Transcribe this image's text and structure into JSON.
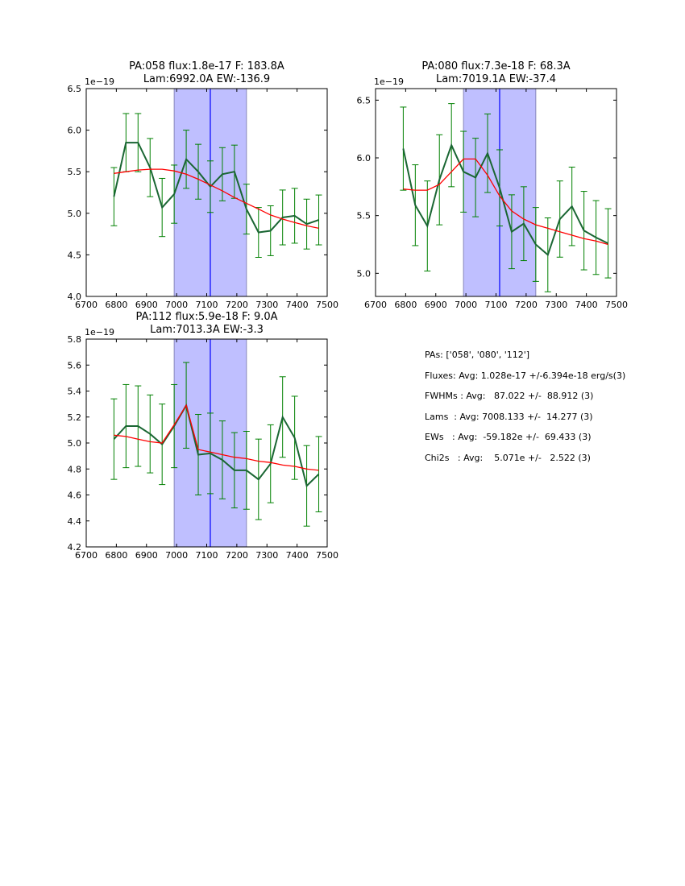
{
  "chart_data": [
    {
      "type": "line",
      "title_lines": [
        "PA:058 flux:1.8e-17 F: 183.8A",
        "Lam:6992.0A EW:-136.9"
      ],
      "offset_label": "1e−19",
      "xlim": [
        6700,
        7500
      ],
      "ylim": [
        4.0,
        6.5
      ],
      "xticks": [
        6700,
        6800,
        6900,
        7000,
        7100,
        7200,
        7300,
        7400,
        7500
      ],
      "yticks": [
        "4.0",
        "4.5",
        "5.0",
        "5.5",
        "6.0",
        "6.5"
      ],
      "shade_range": [
        6992,
        7232
      ],
      "center_line": 7112,
      "x": [
        6792,
        6832,
        6872,
        6912,
        6952,
        6992,
        7032,
        7072,
        7112,
        7152,
        7192,
        7232,
        7272,
        7312,
        7352,
        7392,
        7432,
        7472
      ],
      "series": [
        {
          "name": "data",
          "color": "#006633",
          "values": [
            5.2,
            5.85,
            5.85,
            5.55,
            5.07,
            5.23,
            5.65,
            5.5,
            5.32,
            5.47,
            5.5,
            5.05,
            4.77,
            4.79,
            4.95,
            4.97,
            4.87,
            4.92
          ],
          "errors": [
            0.35,
            0.35,
            0.35,
            0.35,
            0.35,
            0.35,
            0.35,
            0.33,
            0.31,
            0.32,
            0.32,
            0.3,
            0.3,
            0.3,
            0.33,
            0.33,
            0.3,
            0.3
          ]
        },
        {
          "name": "fit",
          "color": "#ff0000",
          "values": [
            5.48,
            5.5,
            5.52,
            5.53,
            5.53,
            5.51,
            5.47,
            5.41,
            5.34,
            5.27,
            5.19,
            5.12,
            5.05,
            4.98,
            4.93,
            4.89,
            4.85,
            4.82
          ]
        }
      ]
    },
    {
      "type": "line",
      "title_lines": [
        "PA:080 flux:7.3e-18 F: 68.3A",
        "Lam:7019.1A EW:-37.4"
      ],
      "offset_label": "1e−19",
      "xlim": [
        6700,
        7500
      ],
      "ylim": [
        4.8,
        6.6
      ],
      "xticks": [
        6700,
        6800,
        6900,
        7000,
        7100,
        7200,
        7300,
        7400,
        7500
      ],
      "yticks": [
        "5.0",
        "5.5",
        "6.0",
        "6.5"
      ],
      "shade_range": [
        6992,
        7232
      ],
      "center_line": 7112,
      "x": [
        6792,
        6832,
        6872,
        6912,
        6952,
        6992,
        7032,
        7072,
        7112,
        7152,
        7192,
        7232,
        7272,
        7312,
        7352,
        7392,
        7432,
        7472
      ],
      "series": [
        {
          "name": "data",
          "color": "#006633",
          "values": [
            6.08,
            5.59,
            5.41,
            5.81,
            6.11,
            5.88,
            5.83,
            6.04,
            5.74,
            5.36,
            5.43,
            5.25,
            5.16,
            5.47,
            5.58,
            5.37,
            5.31,
            5.26
          ],
          "errors": [
            0.36,
            0.35,
            0.39,
            0.39,
            0.36,
            0.35,
            0.34,
            0.34,
            0.33,
            0.32,
            0.32,
            0.32,
            0.32,
            0.33,
            0.34,
            0.34,
            0.32,
            0.3
          ]
        },
        {
          "name": "fit",
          "color": "#ff0000",
          "values": [
            5.73,
            5.72,
            5.72,
            5.77,
            5.88,
            5.99,
            5.99,
            5.85,
            5.67,
            5.54,
            5.47,
            5.42,
            5.39,
            5.36,
            5.33,
            5.3,
            5.28,
            5.25
          ]
        }
      ]
    },
    {
      "type": "line",
      "title_lines": [
        "PA:112 flux:5.9e-18 F: 9.0A",
        "Lam:7013.3A EW:-3.3"
      ],
      "offset_label": "1e−19",
      "xlim": [
        6700,
        7500
      ],
      "ylim": [
        4.2,
        5.8
      ],
      "xticks": [
        6700,
        6800,
        6900,
        7000,
        7100,
        7200,
        7300,
        7400,
        7500
      ],
      "yticks": [
        "4.2",
        "4.4",
        "4.6",
        "4.8",
        "5.0",
        "5.2",
        "5.4",
        "5.6",
        "5.8"
      ],
      "shade_range": [
        6992,
        7232
      ],
      "center_line": 7112,
      "x": [
        6792,
        6832,
        6872,
        6912,
        6952,
        6992,
        7032,
        7072,
        7112,
        7152,
        7192,
        7232,
        7272,
        7312,
        7352,
        7392,
        7432,
        7472
      ],
      "series": [
        {
          "name": "data",
          "color": "#006633",
          "values": [
            5.03,
            5.13,
            5.13,
            5.07,
            4.99,
            5.13,
            5.29,
            4.91,
            4.92,
            4.87,
            4.79,
            4.79,
            4.72,
            4.84,
            5.2,
            5.04,
            4.67,
            4.76
          ],
          "errors": [
            0.31,
            0.32,
            0.31,
            0.3,
            0.31,
            0.32,
            0.33,
            0.31,
            0.31,
            0.3,
            0.29,
            0.3,
            0.31,
            0.3,
            0.31,
            0.32,
            0.31,
            0.29
          ]
        },
        {
          "name": "fit",
          "color": "#ff0000",
          "values": [
            5.06,
            5.05,
            5.03,
            5.01,
            5.0,
            5.14,
            5.29,
            4.95,
            4.93,
            4.91,
            4.89,
            4.88,
            4.86,
            4.85,
            4.83,
            4.82,
            4.8,
            4.79
          ]
        }
      ]
    }
  ],
  "stats": {
    "pas": "PAs: ['058', '080', '112']",
    "fluxes": "Fluxes: Avg: 1.028e-17 +/-6.394e-18 erg/s(3)",
    "fwhms": "FWHMs : Avg:   87.022 +/-  88.912 (3)",
    "lams": "Lams  : Avg: 7008.133 +/-  14.277 (3)",
    "ews": "EWs   : Avg:  -59.182e +/-  69.433 (3)",
    "chi2s": "Chi2s   : Avg:    5.071e +/-   2.522 (3)"
  }
}
